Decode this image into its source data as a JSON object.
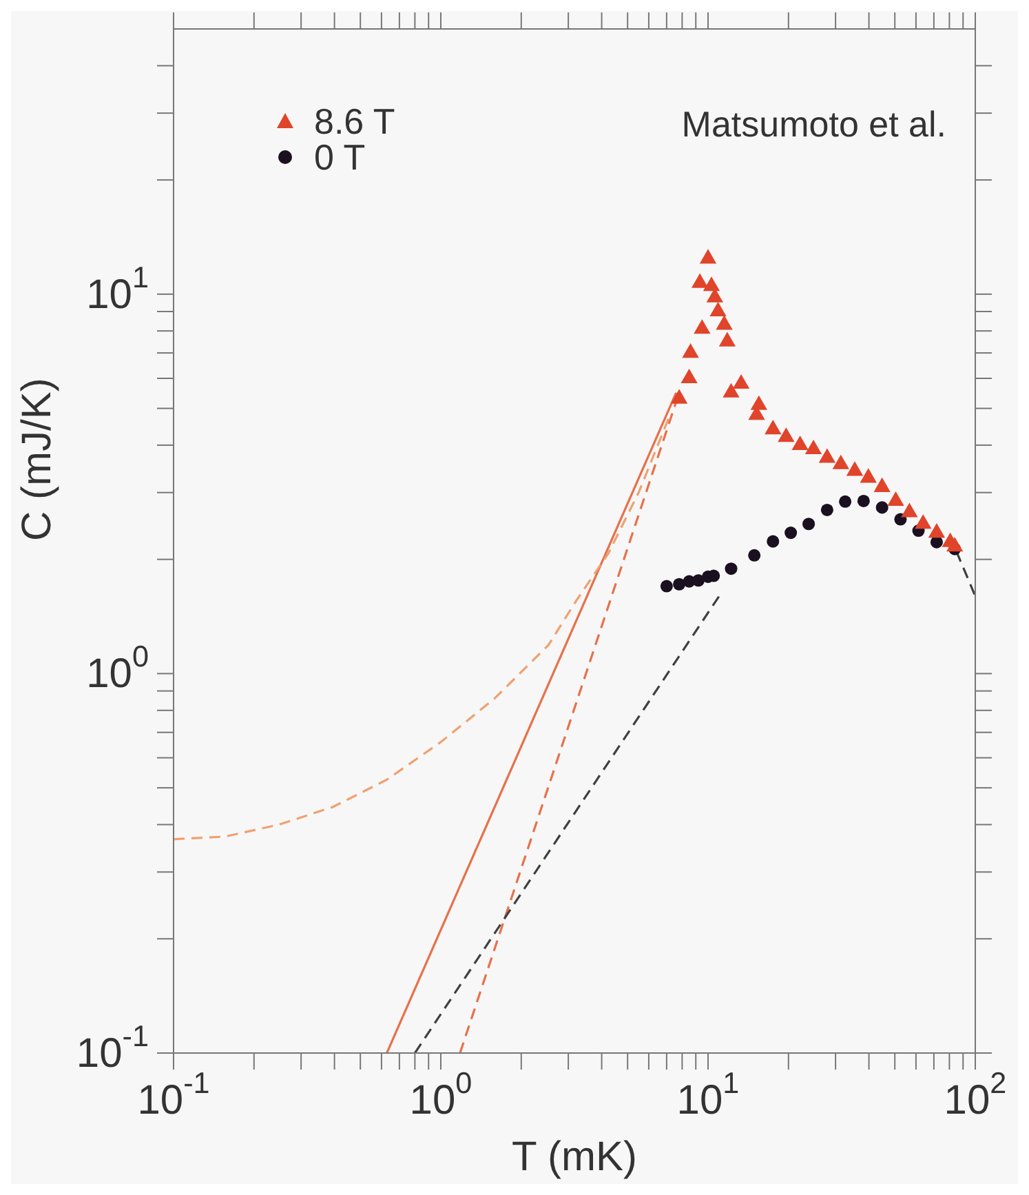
{
  "chart_data": {
    "type": "scatter",
    "xlabel": "T  (mK)",
    "ylabel": "C (mJ/K)",
    "log": "xy",
    "xlim": [
      0.1,
      100
    ],
    "ylim": [
      0.1,
      50
    ],
    "xticks": [
      {
        "value": 0.1,
        "label": "10$^{-1}$"
      },
      {
        "value": 0.2,
        "label": null
      },
      {
        "value": 0.3,
        "label": null
      },
      {
        "value": 0.4,
        "label": null
      },
      {
        "value": 0.5,
        "label": null
      },
      {
        "value": 0.6,
        "label": null
      },
      {
        "value": 0.7,
        "label": null
      },
      {
        "value": 0.8,
        "label": null
      },
      {
        "value": 0.9,
        "label": null
      },
      {
        "value": 1,
        "label": "10$^{0}$"
      },
      {
        "value": 2,
        "label": null
      },
      {
        "value": 3,
        "label": null
      },
      {
        "value": 4,
        "label": null
      },
      {
        "value": 5,
        "label": null
      },
      {
        "value": 6,
        "label": null
      },
      {
        "value": 7,
        "label": null
      },
      {
        "value": 8,
        "label": null
      },
      {
        "value": 9,
        "label": null
      },
      {
        "value": 10,
        "label": "10$^{1}$"
      },
      {
        "value": 20,
        "label": null
      },
      {
        "value": 30,
        "label": null
      },
      {
        "value": 40,
        "label": null
      },
      {
        "value": 50,
        "label": null
      },
      {
        "value": 60,
        "label": null
      },
      {
        "value": 70,
        "label": null
      },
      {
        "value": 80,
        "label": null
      },
      {
        "value": 90,
        "label": null
      },
      {
        "value": 100,
        "label": "10$^{2}$"
      }
    ],
    "yticks": [
      {
        "value": 0.1,
        "label": "10$^{-1}$"
      },
      {
        "value": 0.2,
        "label": null
      },
      {
        "value": 0.3,
        "label": null
      },
      {
        "value": 0.4,
        "label": null
      },
      {
        "value": 0.5,
        "label": null
      },
      {
        "value": 0.6,
        "label": null
      },
      {
        "value": 0.7,
        "label": null
      },
      {
        "value": 0.8,
        "label": null
      },
      {
        "value": 0.9,
        "label": null
      },
      {
        "value": 1,
        "label": "10$^{0}$"
      },
      {
        "value": 2,
        "label": null
      },
      {
        "value": 3,
        "label": null
      },
      {
        "value": 4,
        "label": null
      },
      {
        "value": 5,
        "label": null
      },
      {
        "value": 6,
        "label": null
      },
      {
        "value": 7,
        "label": null
      },
      {
        "value": 8,
        "label": null
      },
      {
        "value": 9,
        "label": null
      },
      {
        "value": 10,
        "label": "10$^{1}$"
      },
      {
        "value": 20,
        "label": null
      },
      {
        "value": 30,
        "label": null
      },
      {
        "value": 40,
        "label": null
      }
    ],
    "grid": false,
    "legend": "top left",
    "annotations": [
      "Matsumoto et al."
    ],
    "series": [
      {
        "name": "8.6 T",
        "marker": "triangle",
        "color": "#e0442a",
        "x": [
          7.8,
          8.5,
          8.6,
          9.32,
          9.5,
          10.0,
          10.3,
          10.6,
          10.9,
          11.5,
          11.8,
          12.2,
          13.3,
          15.2,
          15.5,
          17.5,
          19.6,
          22.1,
          24.8,
          27.9,
          31.4,
          35.4,
          39.8,
          44.8,
          50.4,
          56.7,
          63.8,
          71.7,
          80.6,
          83.8
        ],
        "values": [
          5.3,
          6.0,
          7.0,
          10.7,
          8.1,
          12.4,
          10.5,
          9.8,
          9.0,
          8.3,
          7.5,
          5.5,
          5.8,
          4.8,
          5.1,
          4.4,
          4.2,
          4.0,
          3.9,
          3.7,
          3.56,
          3.42,
          3.28,
          3.1,
          2.85,
          2.66,
          2.48,
          2.35,
          2.22,
          2.16
        ]
      },
      {
        "name": "0 T",
        "marker": "circle",
        "color": "#1a1020",
        "x": [
          7.0,
          7.8,
          8.5,
          9.2,
          10.0,
          10.5,
          12.2,
          14.9,
          17.5,
          20.4,
          23.8,
          27.9,
          32.6,
          38.2,
          44.8,
          52.5,
          61.3,
          71.7,
          83.8
        ],
        "values": [
          1.7,
          1.72,
          1.75,
          1.76,
          1.8,
          1.81,
          1.89,
          2.05,
          2.23,
          2.35,
          2.48,
          2.7,
          2.84,
          2.85,
          2.74,
          2.55,
          2.38,
          2.22,
          2.13
        ]
      },
      {
        "type": "line",
        "marker": "none",
        "line_style": "solid",
        "color": "#e8704a",
        "x": [
          0.628,
          7.6
        ],
        "values": [
          0.1,
          5.5
        ]
      },
      {
        "type": "line",
        "marker": "none",
        "line_style": "dashed",
        "color": "#e8704a",
        "x": [
          1.18,
          7.8
        ],
        "values": [
          0.1,
          5.5
        ]
      },
      {
        "type": "line",
        "marker": "none",
        "line_style": "dashed",
        "color": "#f0a070",
        "x": [
          0.1,
          0.156,
          0.248,
          0.394,
          0.627,
          1.0,
          1.59,
          2.53,
          3.2,
          4.23,
          5.5,
          7.2
        ],
        "values": [
          0.366,
          0.372,
          0.4,
          0.445,
          0.525,
          0.66,
          0.86,
          1.19,
          1.55,
          2.07,
          3.0,
          4.8
        ]
      },
      {
        "type": "line",
        "marker": "none",
        "line_style": "dashed",
        "color": "#404040",
        "x": [
          0.8,
          11
        ],
        "values": [
          0.1,
          1.6
        ]
      },
      {
        "type": "line",
        "marker": "none",
        "line_style": "dashed",
        "color": "#404040",
        "x": [
          85,
          100
        ],
        "values": [
          2.1,
          1.6
        ]
      }
    ]
  }
}
